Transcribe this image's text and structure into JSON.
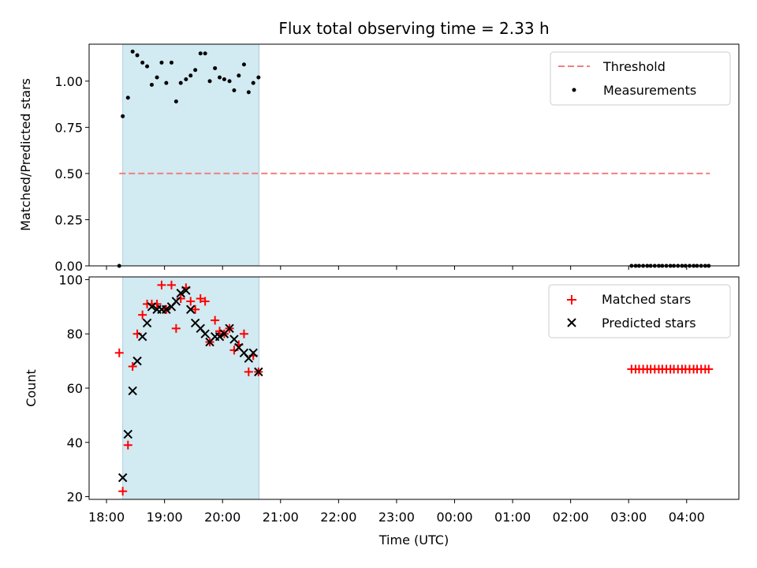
{
  "title": "Flux total observing time = 2.33 h",
  "xlabel": "Time (UTC)",
  "x_tick_labels": [
    "18:00",
    "19:00",
    "20:00",
    "21:00",
    "22:00",
    "23:00",
    "00:00",
    "01:00",
    "02:00",
    "03:00",
    "04:00"
  ],
  "colors": {
    "threshold": "#f08080",
    "measurements": "#000000",
    "matched": "#ff0000",
    "predicted": "#000000",
    "observing_window": "#add8e6"
  },
  "chart_data": [
    {
      "type": "scatter",
      "ylabel": "Matched/Predicted stars",
      "ylim": [
        0,
        1.2
      ],
      "y_tick_labels": [
        "0.00",
        "0.25",
        "0.50",
        "0.75",
        "1.00"
      ],
      "y_ticks": [
        0,
        0.25,
        0.5,
        0.75,
        1.0
      ],
      "xlim_hours": [
        17.7,
        28.9
      ],
      "shaded_span_hours": [
        18.28,
        20.63
      ],
      "legend_position": "top-right",
      "threshold": {
        "name": "Threshold",
        "value": 0.5,
        "x_hours": [
          18.22,
          28.4
        ]
      },
      "series": [
        {
          "name": "Measurements",
          "x_hours": [
            18.22,
            18.28,
            18.37,
            18.45,
            18.53,
            18.62,
            18.7,
            18.78,
            18.87,
            18.95,
            19.03,
            19.12,
            19.2,
            19.28,
            19.37,
            19.45,
            19.53,
            19.62,
            19.7,
            19.78,
            19.87,
            19.95,
            20.03,
            20.12,
            20.2,
            20.28,
            20.37,
            20.45,
            20.53,
            20.62,
            27.05,
            27.12,
            27.18,
            27.25,
            27.32,
            27.38,
            27.45,
            27.52,
            27.58,
            27.65,
            27.72,
            27.78,
            27.85,
            27.92,
            27.98,
            28.05,
            28.12,
            28.18,
            28.25,
            28.32,
            28.38
          ],
          "values": [
            0.0,
            0.81,
            0.91,
            1.16,
            1.14,
            1.1,
            1.08,
            0.98,
            1.02,
            1.1,
            0.99,
            1.1,
            0.89,
            0.99,
            1.01,
            1.03,
            1.06,
            1.15,
            1.15,
            1.0,
            1.07,
            1.02,
            1.01,
            1.0,
            0.95,
            1.03,
            1.09,
            0.94,
            0.99,
            1.02,
            0,
            0,
            0,
            0,
            0,
            0,
            0,
            0,
            0,
            0,
            0,
            0,
            0,
            0,
            0,
            0,
            0,
            0,
            0,
            0,
            0
          ]
        }
      ]
    },
    {
      "type": "scatter",
      "ylabel": "Count",
      "ylim": [
        19,
        101
      ],
      "y_tick_labels": [
        "20",
        "40",
        "60",
        "80",
        "100"
      ],
      "y_ticks": [
        20,
        40,
        60,
        80,
        100
      ],
      "xlim_hours": [
        17.7,
        28.9
      ],
      "shaded_span_hours": [
        18.28,
        20.63
      ],
      "legend_position": "top-right",
      "series": [
        {
          "name": "Matched stars",
          "marker": "plus",
          "x_hours": [
            18.22,
            18.28,
            18.37,
            18.45,
            18.53,
            18.62,
            18.7,
            18.78,
            18.87,
            18.95,
            19.03,
            19.12,
            19.2,
            19.28,
            19.37,
            19.45,
            19.53,
            19.62,
            19.7,
            19.78,
            19.87,
            19.95,
            20.03,
            20.12,
            20.2,
            20.28,
            20.37,
            20.45,
            20.53,
            20.62,
            27.05,
            27.12,
            27.18,
            27.25,
            27.32,
            27.38,
            27.45,
            27.52,
            27.58,
            27.65,
            27.72,
            27.78,
            27.85,
            27.92,
            27.98,
            28.05,
            28.12,
            28.18,
            28.25,
            28.32,
            28.38
          ],
          "values": [
            73,
            22,
            39,
            68,
            80,
            87,
            91,
            91,
            91,
            98,
            89,
            98,
            82,
            93,
            97,
            92,
            89,
            93,
            92,
            77,
            85,
            81,
            80,
            82,
            74,
            76,
            80,
            66,
            72,
            66,
            67,
            67,
            67,
            67,
            67,
            67,
            67,
            67,
            67,
            67,
            67,
            67,
            67,
            67,
            67,
            67,
            67,
            67,
            67,
            67,
            67
          ]
        },
        {
          "name": "Predicted stars",
          "marker": "x",
          "x_hours": [
            18.28,
            18.37,
            18.45,
            18.53,
            18.62,
            18.7,
            18.78,
            18.87,
            18.95,
            19.03,
            19.12,
            19.2,
            19.28,
            19.37,
            19.45,
            19.53,
            19.62,
            19.7,
            19.78,
            19.87,
            19.95,
            20.03,
            20.12,
            20.2,
            20.28,
            20.37,
            20.45,
            20.53,
            20.62
          ],
          "values": [
            27,
            43,
            59,
            70,
            79,
            84,
            90,
            89,
            89,
            89,
            90,
            92,
            95,
            96,
            89,
            84,
            82,
            80,
            77,
            79,
            79,
            80,
            82,
            78,
            75,
            73,
            71,
            73,
            66
          ]
        }
      ]
    }
  ]
}
